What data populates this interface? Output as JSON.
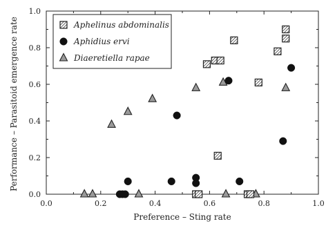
{
  "chart_data": {
    "type": "scatter",
    "xlabel": "Preference – Sting rate",
    "ylabel": "Performance – Parasitoid emergence rate",
    "xlim": [
      0.0,
      1.0
    ],
    "ylim": [
      0.0,
      1.0
    ],
    "x_ticks": [
      "0.0",
      "0.2",
      "0.4",
      "0.6",
      "0.8",
      "1.0"
    ],
    "y_ticks": [
      "0.0",
      "0.2",
      "0.4",
      "0.6",
      "0.8",
      "1.0"
    ],
    "grid": false,
    "legend_position": "top-left",
    "series": [
      {
        "name": "Aphelinus abdominalis",
        "marker": "hatched-square",
        "points": [
          {
            "x": 0.55,
            "y": 0.0
          },
          {
            "x": 0.56,
            "y": 0.0
          },
          {
            "x": 0.74,
            "y": 0.0
          },
          {
            "x": 0.75,
            "y": 0.0
          },
          {
            "x": 0.63,
            "y": 0.21
          },
          {
            "x": 0.59,
            "y": 0.71
          },
          {
            "x": 0.62,
            "y": 0.73
          },
          {
            "x": 0.64,
            "y": 0.73
          },
          {
            "x": 0.69,
            "y": 0.84
          },
          {
            "x": 0.78,
            "y": 0.61
          },
          {
            "x": 0.85,
            "y": 0.78
          },
          {
            "x": 0.88,
            "y": 0.85
          },
          {
            "x": 0.88,
            "y": 0.9
          }
        ]
      },
      {
        "name": "Aphidius ervi",
        "marker": "circle",
        "points": [
          {
            "x": 0.27,
            "y": 0.0
          },
          {
            "x": 0.28,
            "y": 0.0
          },
          {
            "x": 0.29,
            "y": 0.0
          },
          {
            "x": 0.3,
            "y": 0.07
          },
          {
            "x": 0.46,
            "y": 0.07
          },
          {
            "x": 0.48,
            "y": 0.43
          },
          {
            "x": 0.55,
            "y": 0.06
          },
          {
            "x": 0.55,
            "y": 0.09
          },
          {
            "x": 0.67,
            "y": 0.62
          },
          {
            "x": 0.71,
            "y": 0.07
          },
          {
            "x": 0.87,
            "y": 0.29
          },
          {
            "x": 0.9,
            "y": 0.69
          }
        ]
      },
      {
        "name": "Diaeretiella rapae",
        "marker": "triangle",
        "points": [
          {
            "x": 0.14,
            "y": 0.0
          },
          {
            "x": 0.17,
            "y": 0.0
          },
          {
            "x": 0.34,
            "y": 0.0
          },
          {
            "x": 0.66,
            "y": 0.0
          },
          {
            "x": 0.77,
            "y": 0.0
          },
          {
            "x": 0.24,
            "y": 0.38
          },
          {
            "x": 0.3,
            "y": 0.45
          },
          {
            "x": 0.39,
            "y": 0.52
          },
          {
            "x": 0.55,
            "y": 0.58
          },
          {
            "x": 0.65,
            "y": 0.61
          },
          {
            "x": 0.88,
            "y": 0.58
          }
        ]
      }
    ]
  }
}
